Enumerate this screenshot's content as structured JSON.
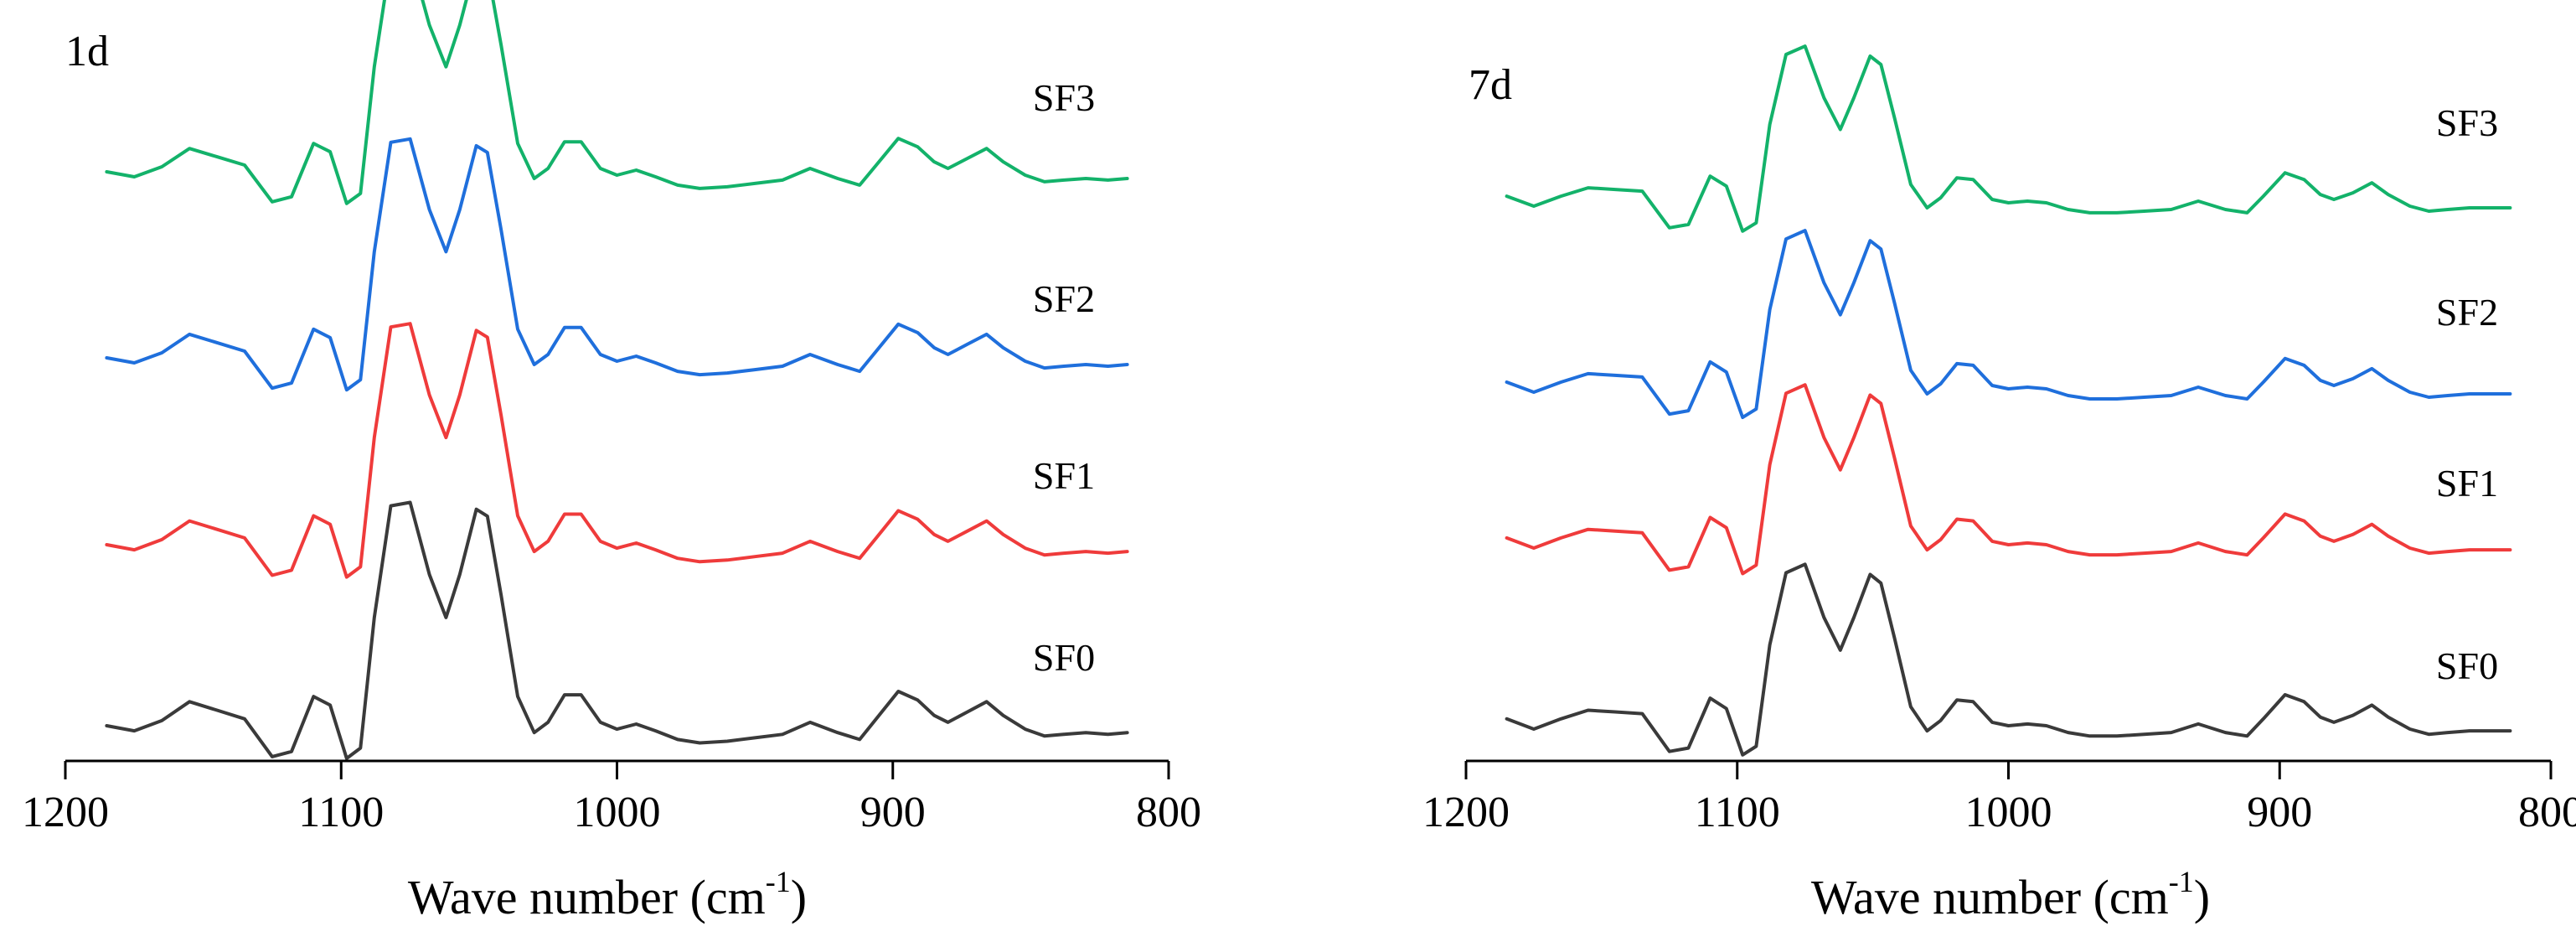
{
  "chart_data": [
    {
      "type": "line",
      "panel_label": "1d",
      "xlabel": "Wave number (cm",
      "xlabel_superscript": "-1",
      "xlabel_close": ")",
      "xlim": [
        1200,
        800
      ],
      "x_reversed": true,
      "x_ticks": [
        1200,
        1100,
        1000,
        900,
        800
      ],
      "y_axis_visible": false,
      "grid": false,
      "x_range": [
        1185,
        815
      ],
      "series": [
        {
          "name": "SF0",
          "color": "#3a3a3a"
        },
        {
          "name": "SF1",
          "color": "#ef3b3b"
        },
        {
          "name": "SF2",
          "color": "#1f6fdc"
        },
        {
          "name": "SF3",
          "color": "#13b26a"
        }
      ]
    },
    {
      "type": "line",
      "panel_label": "7d",
      "xlabel": "Wave number (cm",
      "xlabel_superscript": "-1",
      "xlabel_close": ")",
      "xlim": [
        1200,
        800
      ],
      "x_reversed": true,
      "x_ticks": [
        1200,
        1100,
        1000,
        900,
        800
      ],
      "y_axis_visible": false,
      "grid": false,
      "x_range": [
        1185,
        815
      ],
      "series": [
        {
          "name": "SF0",
          "color": "#3a3a3a"
        },
        {
          "name": "SF1",
          "color": "#ef3b3b"
        },
        {
          "name": "SF2",
          "color": "#1f6fdc"
        },
        {
          "name": "SF3",
          "color": "#13b26a"
        }
      ]
    }
  ],
  "spectrum_shape": {
    "x": [
      1185,
      1175,
      1165,
      1155,
      1145,
      1135,
      1125,
      1118,
      1110,
      1104,
      1098,
      1093,
      1088,
      1082,
      1075,
      1068,
      1062,
      1057,
      1051,
      1047,
      1042,
      1036,
      1030,
      1025,
      1019,
      1013,
      1006,
      1000,
      993,
      986,
      978,
      970,
      960,
      950,
      940,
      930,
      920,
      912,
      906,
      898,
      891,
      885,
      880,
      873,
      866,
      860,
      852,
      845,
      838,
      830,
      822,
      815
    ],
    "panel_1d": [
      0,
      -0.3,
      0.3,
      1.4,
      0.9,
      0.4,
      -1.8,
      -1.5,
      1.7,
      1.2,
      -1.9,
      -1.3,
      6.3,
      12.8,
      13.0,
      8.8,
      6.3,
      8.8,
      12.6,
      12.2,
      7.6,
      1.7,
      -0.4,
      0.2,
      1.8,
      1.8,
      0.2,
      -0.2,
      0.1,
      -0.3,
      -0.8,
      -1.0,
      -0.9,
      -0.7,
      -0.5,
      0.2,
      -0.4,
      -0.8,
      0.4,
      2.0,
      1.5,
      0.6,
      0.2,
      0.8,
      1.4,
      0.6,
      -0.2,
      -0.6,
      -0.5,
      -0.4,
      -0.5,
      -0.4
    ],
    "panel_7d": [
      0.5,
      -0.1,
      0.5,
      1.0,
      0.9,
      0.8,
      -1.4,
      -1.2,
      1.7,
      1.1,
      -1.6,
      -1.1,
      4.8,
      9.0,
      9.5,
      6.4,
      4.5,
      6.4,
      8.9,
      8.4,
      5.2,
      1.2,
      -0.2,
      0.4,
      1.6,
      1.5,
      0.3,
      0.1,
      0.2,
      0.1,
      -0.3,
      -0.5,
      -0.5,
      -0.4,
      -0.3,
      0.2,
      -0.3,
      -0.5,
      0.5,
      1.9,
      1.5,
      0.6,
      0.3,
      0.7,
      1.3,
      0.6,
      -0.1,
      -0.4,
      -0.3,
      -0.2,
      -0.2,
      -0.2
    ]
  }
}
